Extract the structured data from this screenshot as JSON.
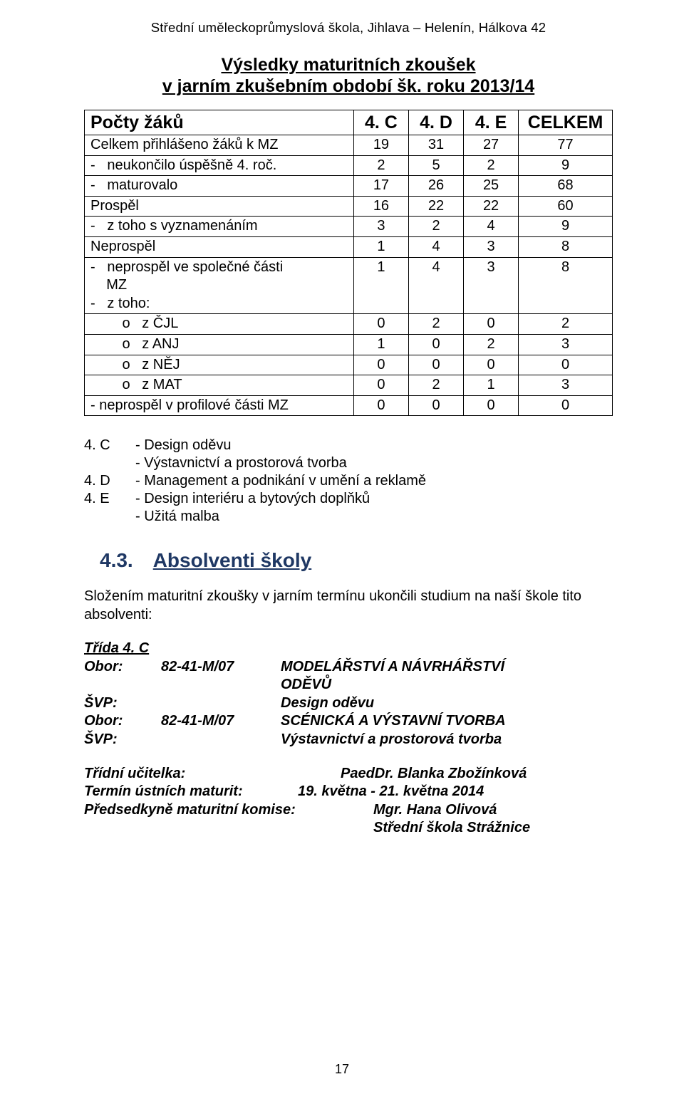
{
  "header": "Střední uměleckoprůmyslová škola, Jihlava – Helenín, Hálkova 42",
  "title_line1": "Výsledky maturitních zkoušek",
  "title_line2": "v jarním zkušebním období šk. roku 2013/14",
  "table": {
    "col_widths": [
      "51%",
      "10.4%",
      "10.4%",
      "10.4%",
      "17.8%"
    ],
    "headers": [
      "Počty žáků",
      "4. C",
      "4. D",
      "4. E",
      "CELKEM"
    ],
    "rows": [
      {
        "label": "Celkem přihlášeno žáků k MZ",
        "cells": [
          "19",
          "31",
          "27",
          "77"
        ]
      },
      {
        "label": "-   neukončilo úspěšně 4. roč.",
        "cells": [
          "2",
          "5",
          "2",
          "9"
        ]
      },
      {
        "label": "-   maturovalo",
        "cells": [
          "17",
          "26",
          "25",
          "68"
        ]
      },
      {
        "label": "Prospěl",
        "cells": [
          "16",
          "22",
          "22",
          "60"
        ]
      },
      {
        "label": "-   z toho s vyznamenáním",
        "cells": [
          "3",
          "2",
          "4",
          "9"
        ]
      },
      {
        "label": "Neprospěl",
        "cells": [
          "1",
          "4",
          "3",
          "8"
        ]
      },
      {
        "label": "",
        "cells": [
          "1",
          "4",
          "3",
          "8"
        ],
        "multi": [
          "-   neprospěl ve společné části",
          "    MZ",
          "-   z toho:"
        ],
        "sub": [
          {
            "label": "        o   z ČJL",
            "cells": [
              "0",
              "2",
              "0",
              "2"
            ]
          },
          {
            "label": "        o   z ANJ",
            "cells": [
              "1",
              "0",
              "2",
              "3"
            ]
          },
          {
            "label": "        o   z NĚJ",
            "cells": [
              "0",
              "0",
              "0",
              "0"
            ]
          },
          {
            "label": "        o   z MAT",
            "cells": [
              "0",
              "2",
              "1",
              "3"
            ]
          }
        ]
      },
      {
        "label": "- neprospěl v profilové části MZ",
        "cells": [
          "0",
          "0",
          "0",
          "0"
        ]
      }
    ]
  },
  "legend": [
    {
      "k": "4. C",
      "v": "- Design oděvu"
    },
    {
      "k": "",
      "v": "- Výstavnictví a prostorová tvorba"
    },
    {
      "k": "4. D",
      "v": "- Management a podnikání v umění a reklamě"
    },
    {
      "k": "4. E",
      "v": "- Design interiéru a bytových doplňků"
    },
    {
      "k": "",
      "v": "- Užitá malba"
    }
  ],
  "section": {
    "num": "4.3.",
    "title": "Absolventi  školy"
  },
  "para": "Složením maturitní zkoušky v jarním termínu ukončili studium na naší škole tito absolventi:",
  "class_block": {
    "class_label": "Třída 4. C",
    "rows": [
      {
        "k": "Obor:",
        "code": "82-41-M/07",
        "v": "MODELÁŘSTVÍ A NÁVRHÁŘSTVÍ",
        "style": "bi"
      },
      {
        "k": "",
        "code": "",
        "v": "ODĚVŮ",
        "style": "bi"
      },
      {
        "k": "ŠVP:",
        "code": "",
        "v": "Design oděvu",
        "style": "bi",
        "span": true
      },
      {
        "k": "Obor:",
        "code": "82-41-M/07",
        "v": "SCÉNICKÁ A VÝSTAVNÍ TVORBA",
        "style": "bi"
      },
      {
        "k": "ŠVP:",
        "code": "",
        "v": "Výstavnictví a prostorová tvorba",
        "style": "bi",
        "span": true
      }
    ]
  },
  "teacher_block": {
    "rows": [
      {
        "k": "Třídní učitelka:",
        "v": "PaedDr. Blanka Zbožínková"
      },
      {
        "k": "Termín ústních maturit:",
        "v": "19. května - 21. května 2014",
        "v_offset": true
      },
      {
        "k": "Předsedkyně maturitní komise:",
        "v": "Mgr. Hana Olivová",
        "v_indent": true
      },
      {
        "k": "",
        "v": "Střední škola Strážnice",
        "v_indent2": true
      }
    ]
  },
  "page_number": "17"
}
